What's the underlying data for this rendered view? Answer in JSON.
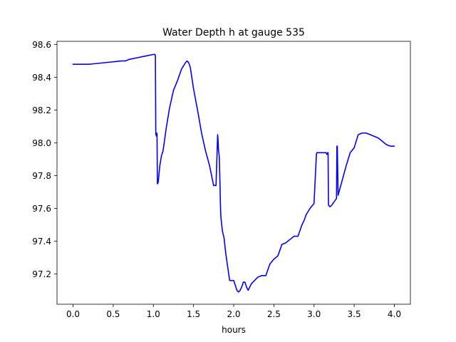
{
  "chart_data": {
    "type": "line",
    "title": "Water Depth h at gauge 535",
    "xlabel": "hours",
    "ylabel": "",
    "xlim": [
      -0.2,
      4.2
    ],
    "ylim": [
      97.015,
      98.62
    ],
    "xticks": [
      0,
      0.5,
      1,
      1.5,
      2,
      2.5,
      3,
      3.5,
      4
    ],
    "xtick_labels": [
      "0.0",
      "0.5",
      "1.0",
      "1.5",
      "2.0",
      "2.5",
      "3.0",
      "3.5",
      "4.0"
    ],
    "yticks": [
      97.2,
      97.4,
      97.6,
      97.8,
      98.0,
      98.2,
      98.4,
      98.6
    ],
    "ytick_labels": [
      "97.2",
      "97.4",
      "97.6",
      "97.8",
      "98.0",
      "98.2",
      "98.4",
      "98.6"
    ],
    "grid": false,
    "legend": "none",
    "series": [
      {
        "color": "#0000ff",
        "x": [
          0.0,
          0.2,
          0.4,
          0.6,
          0.65,
          0.7,
          0.8,
          0.9,
          1.0,
          1.02,
          1.025,
          1.03,
          1.035,
          1.04,
          1.045,
          1.05,
          1.06,
          1.08,
          1.1,
          1.12,
          1.14,
          1.16,
          1.2,
          1.25,
          1.3,
          1.35,
          1.4,
          1.42,
          1.44,
          1.46,
          1.5,
          1.55,
          1.6,
          1.65,
          1.7,
          1.75,
          1.78,
          1.8,
          1.805,
          1.81,
          1.82,
          1.83,
          1.835,
          1.84,
          1.86,
          1.88,
          1.9,
          1.92,
          1.95,
          1.98,
          2.0,
          2.02,
          2.04,
          2.06,
          2.08,
          2.1,
          2.12,
          2.14,
          2.16,
          2.18,
          2.2,
          2.22,
          2.24,
          2.26,
          2.3,
          2.35,
          2.4,
          2.45,
          2.5,
          2.55,
          2.6,
          2.65,
          2.7,
          2.75,
          2.8,
          2.85,
          2.88,
          2.9,
          2.95,
          3.0,
          3.03,
          3.035,
          3.05,
          3.1,
          3.15,
          3.16,
          3.17,
          3.175,
          3.18,
          3.2,
          3.22,
          3.25,
          3.28,
          3.285,
          3.29,
          3.3,
          3.35,
          3.4,
          3.45,
          3.5,
          3.55,
          3.6,
          3.62,
          3.65,
          3.7,
          3.75,
          3.8,
          3.85,
          3.9,
          3.95,
          4.0
        ],
        "y": [
          98.48,
          98.48,
          98.49,
          98.5,
          98.5,
          98.51,
          98.52,
          98.53,
          98.54,
          98.54,
          98.53,
          98.05,
          98.05,
          98.04,
          98.06,
          97.75,
          97.76,
          97.86,
          97.92,
          97.95,
          98.02,
          98.09,
          98.21,
          98.32,
          98.38,
          98.45,
          98.49,
          98.5,
          98.49,
          98.46,
          98.33,
          98.2,
          98.06,
          97.95,
          97.86,
          97.74,
          97.74,
          98.05,
          98.02,
          97.96,
          97.92,
          97.74,
          97.62,
          97.55,
          97.46,
          97.42,
          97.33,
          97.26,
          97.16,
          97.16,
          97.16,
          97.13,
          97.1,
          97.09,
          97.1,
          97.12,
          97.15,
          97.15,
          97.12,
          97.1,
          97.12,
          97.14,
          97.15,
          97.16,
          97.18,
          97.19,
          97.19,
          97.26,
          97.29,
          97.31,
          97.38,
          97.39,
          97.41,
          97.43,
          97.43,
          97.5,
          97.53,
          97.56,
          97.6,
          97.63,
          97.93,
          97.94,
          97.94,
          97.94,
          97.94,
          97.93,
          97.94,
          97.94,
          97.62,
          97.61,
          97.62,
          97.64,
          97.66,
          97.98,
          97.98,
          97.68,
          97.77,
          97.86,
          97.94,
          97.97,
          98.05,
          98.06,
          98.06,
          98.06,
          98.05,
          98.04,
          98.03,
          98.01,
          97.99,
          97.98,
          97.98
        ]
      }
    ]
  }
}
